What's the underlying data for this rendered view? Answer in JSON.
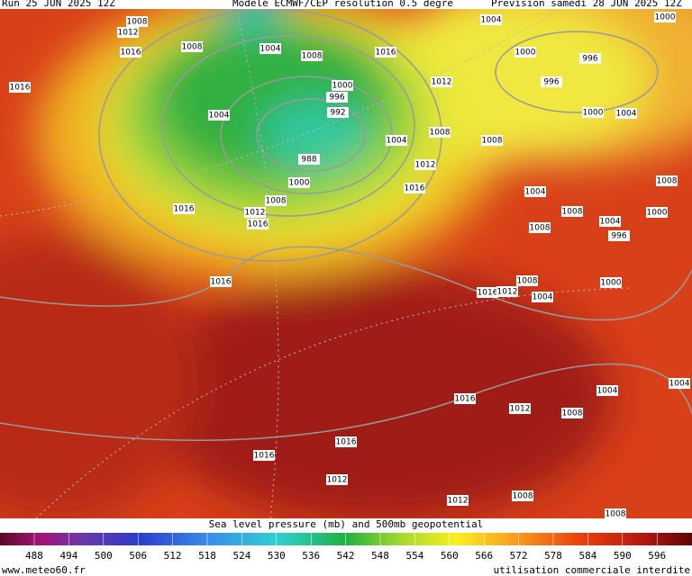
{
  "header": {
    "run": "Run 25 JUN 2025 12Z",
    "model": "Modele ECMWF/CEP resolution 0.5 degre",
    "forecast": "Prevision samedi 28 JUN 2025 12Z"
  },
  "isobar_labels": [
    "1008",
    "1012",
    "1016",
    "1016",
    "1008",
    "1004",
    "1008",
    "1016",
    "1004",
    "1000",
    "1000",
    "996",
    "996",
    "1012",
    "1000",
    "996",
    "992",
    "1004",
    "1000",
    "1004",
    "1008",
    "1004",
    "1008",
    "988",
    "1012",
    "1000",
    "1016",
    "1008",
    "1004",
    "1008",
    "1016",
    "1012",
    "1016",
    "1008",
    "1000",
    "1004",
    "1008",
    "996",
    "1016",
    "1008",
    "1000",
    "1016",
    "1012",
    "1004",
    "1004",
    "1004",
    "1016",
    "1012",
    "1008",
    "1016",
    "1016",
    "1012",
    "1012",
    "1008",
    "1008"
  ],
  "legend": {
    "title": "Sea level pressure (mb) and 500mb geopotential",
    "scale": [
      488,
      494,
      500,
      506,
      512,
      518,
      524,
      530,
      536,
      542,
      548,
      554,
      560,
      566,
      572,
      578,
      584,
      590,
      596
    ]
  },
  "footer": {
    "site": "www.meteo60.fr",
    "notice": "utilisation commerciale interdite"
  }
}
